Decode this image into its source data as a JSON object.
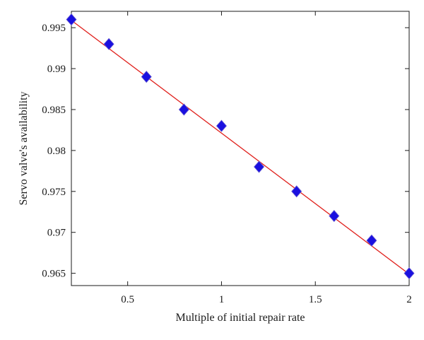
{
  "chart_data": {
    "type": "scatter",
    "title": "",
    "xlabel": "Multiple of initial repair rate",
    "ylabel": "Servo valve's availability",
    "xlim": [
      0.2,
      2.0
    ],
    "ylim": [
      0.9635,
      0.997
    ],
    "xticks": [
      0.5,
      1,
      1.5,
      2
    ],
    "xtick_labels": [
      "0.5",
      "1",
      "1.5",
      "2"
    ],
    "yticks": [
      0.965,
      0.97,
      0.975,
      0.98,
      0.985,
      0.99,
      0.995
    ],
    "ytick_labels": [
      "0.965",
      "0.97",
      "0.975",
      "0.98",
      "0.985",
      "0.99",
      "0.995"
    ],
    "grid": false,
    "series": [
      {
        "kind": "points",
        "marker": "diamond",
        "color": "#1a10e0",
        "x": [
          0.2,
          0.4,
          0.6,
          0.8,
          1.0,
          1.2,
          1.4,
          1.6,
          1.8,
          2.0
        ],
        "y": [
          0.996,
          0.993,
          0.989,
          0.985,
          0.983,
          0.978,
          0.975,
          0.972,
          0.969,
          0.965
        ]
      },
      {
        "kind": "fit-line",
        "color": "#e0201c",
        "x": [
          0.2,
          2.0
        ],
        "y": [
          0.9959,
          0.9649
        ]
      }
    ]
  }
}
